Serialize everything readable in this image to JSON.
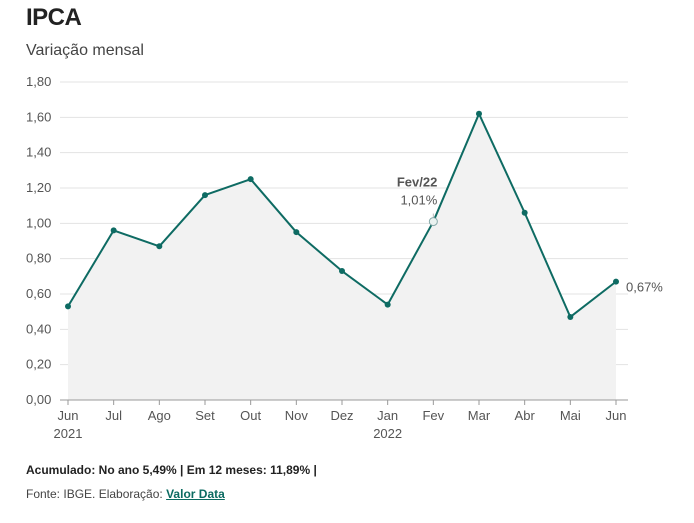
{
  "title": "IPCA",
  "subtitle": "Variação mensal",
  "footnote": {
    "summary": "Acumulado: No ano 5,49% | Em 12 meses: 11,89% |",
    "source_prefix": "Fonte: IBGE. Elaboração:",
    "source_link": "Valor Data"
  },
  "colors": {
    "line": "#0e6b63",
    "area": "#f2f2f2",
    "grid": "#e3e3e3"
  },
  "chart_data": {
    "type": "area",
    "categories": [
      "Jun",
      "Jul",
      "Ago",
      "Set",
      "Out",
      "Nov",
      "Dez",
      "Jan",
      "Fev",
      "Mar",
      "Abr",
      "Mai",
      "Jun"
    ],
    "year_labels": [
      "2021",
      "",
      "",
      "",
      "",
      "",
      "",
      "2022",
      "",
      "",
      "",
      "",
      ""
    ],
    "series": [
      {
        "values": [
          0.53,
          0.96,
          0.87,
          1.16,
          1.25,
          0.95,
          0.73,
          0.54,
          1.01,
          1.62,
          1.06,
          0.47,
          0.67
        ]
      }
    ],
    "y_ticks": [
      "0,00",
      "0,20",
      "0,40",
      "0,60",
      "0,80",
      "1,00",
      "1,20",
      "1,40",
      "1,60",
      "1,80"
    ],
    "ylim": [
      0,
      1.8
    ],
    "grid": true,
    "annotations": [
      {
        "index": 8,
        "label": "Fev/22",
        "value_label": "1,01%"
      }
    ],
    "end_label": "0,67%"
  }
}
